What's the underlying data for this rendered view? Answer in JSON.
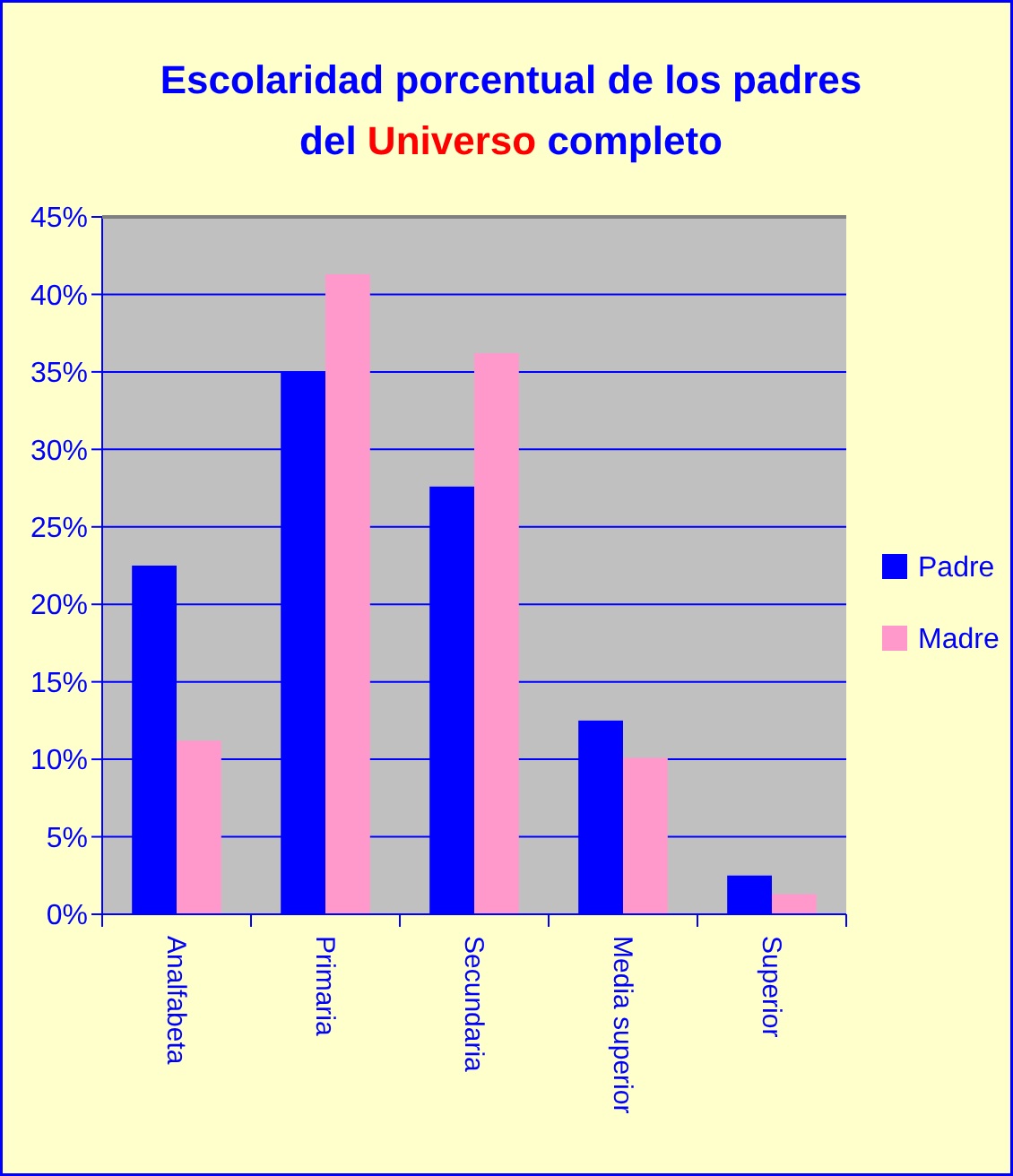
{
  "chart_data": {
    "type": "bar",
    "title": "Escolaridad porcentual de los padres\ndel Universo completo",
    "categories": [
      "Analfabeta",
      "Primaria",
      "Secundaria",
      "Media superior",
      "Superior"
    ],
    "series": [
      {
        "name": "Padre",
        "color": "#0000ff",
        "values": [
          22.5,
          35.0,
          27.6,
          12.5,
          2.5
        ]
      },
      {
        "name": "Madre",
        "color": "#ff99cc",
        "values": [
          11.2,
          41.3,
          36.2,
          10.1,
          1.3
        ]
      }
    ],
    "ylim": [
      0,
      45
    ],
    "yticks": [
      {
        "value": 0,
        "label": "0%"
      },
      {
        "value": 5,
        "label": "5%"
      },
      {
        "value": 10,
        "label": "10%"
      },
      {
        "value": 15,
        "label": "15%"
      },
      {
        "value": 20,
        "label": "20%"
      },
      {
        "value": 25,
        "label": "25%"
      },
      {
        "value": 30,
        "label": "30%"
      },
      {
        "value": 35,
        "label": "35%"
      },
      {
        "value": 40,
        "label": "40%"
      },
      {
        "value": 45,
        "label": "45%"
      }
    ],
    "grid": "y",
    "legend": "right"
  }
}
